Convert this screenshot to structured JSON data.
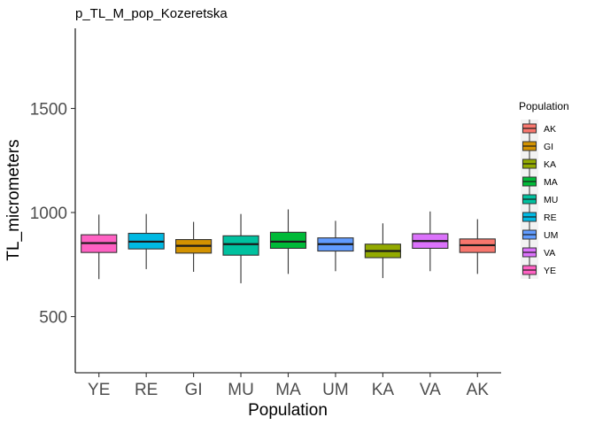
{
  "chart_data": {
    "type": "boxplot",
    "title": "p_TL_M_pop_Kozeretska",
    "xlabel": "Population",
    "ylabel": "TL_micrometers",
    "ylim": [
      230,
      1885
    ],
    "yticks": [
      500,
      1000,
      1500
    ],
    "categories": [
      "YE",
      "RE",
      "GI",
      "MU",
      "MA",
      "UM",
      "KA",
      "VA",
      "AK"
    ],
    "colors": {
      "AK": "#F8766D",
      "GI": "#D39200",
      "KA": "#93AA00",
      "MA": "#00BA38",
      "MU": "#00C19F",
      "RE": "#00B9E3",
      "UM": "#619CFF",
      "VA": "#DB72FB",
      "YE": "#FF61C3"
    },
    "boxes": [
      {
        "population": "YE",
        "min": 680,
        "q1": 808,
        "median": 853,
        "q3": 893,
        "max": 990
      },
      {
        "population": "RE",
        "min": 728,
        "q1": 825,
        "median": 860,
        "q3": 900,
        "max": 993
      },
      {
        "population": "GI",
        "min": 715,
        "q1": 805,
        "median": 840,
        "q3": 870,
        "max": 955
      },
      {
        "population": "MU",
        "min": 660,
        "q1": 795,
        "median": 848,
        "q3": 888,
        "max": 993
      },
      {
        "population": "MA",
        "min": 705,
        "q1": 828,
        "median": 860,
        "q3": 905,
        "max": 1015
      },
      {
        "population": "UM",
        "min": 718,
        "q1": 815,
        "median": 848,
        "q3": 878,
        "max": 960
      },
      {
        "population": "KA",
        "min": 685,
        "q1": 783,
        "median": 815,
        "q3": 848,
        "max": 948
      },
      {
        "population": "VA",
        "min": 718,
        "q1": 828,
        "median": 863,
        "q3": 898,
        "max": 1005
      },
      {
        "population": "AK",
        "min": 705,
        "q1": 808,
        "median": 843,
        "q3": 873,
        "max": 968
      }
    ],
    "legend": {
      "title": "Population",
      "position": "right",
      "entries": [
        "AK",
        "GI",
        "KA",
        "MA",
        "MU",
        "RE",
        "UM",
        "VA",
        "YE"
      ]
    },
    "grid": false
  }
}
